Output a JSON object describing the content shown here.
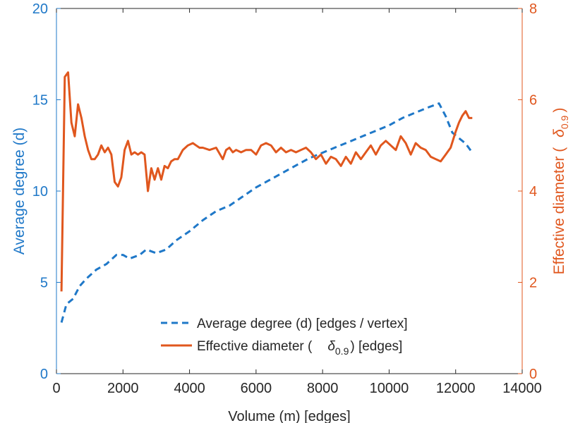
{
  "chart_data": {
    "type": "line",
    "title": "",
    "xlabel": "Volume (m) [edges]",
    "ylabel_left": "Average degree (d)",
    "ylabel_right_prefix": "Effective diameter (",
    "ylabel_right_symbol": "δ",
    "ylabel_right_subscript": "0.9",
    "ylabel_right_suffix": ")",
    "xlim": [
      0,
      14000
    ],
    "ylim_left": [
      0,
      20
    ],
    "ylim_right": [
      0,
      8
    ],
    "x_ticks": [
      "0",
      "2000",
      "4000",
      "6000",
      "8000",
      "10000",
      "12000",
      "14000"
    ],
    "y_left_ticks": [
      "0",
      "5",
      "10",
      "15",
      "20"
    ],
    "y_right_ticks": [
      "0",
      "2",
      "4",
      "6",
      "8"
    ],
    "grid": false,
    "legend_position": "bottom-right",
    "colors": {
      "left_axis": "#1f78c8",
      "right_axis": "#e0571e",
      "frame": "#262626"
    },
    "legend": [
      {
        "prefix": "Average degree (d) [edges / vertex]",
        "symbol": "",
        "subscript": "",
        "suffix": ""
      },
      {
        "prefix": "Effective diameter (",
        "symbol": "δ",
        "subscript": "0.9",
        "suffix": ") [edges]"
      }
    ],
    "series": [
      {
        "name": "Average degree (d) [edges / vertex]",
        "axis": "left",
        "style": "dashed",
        "color": "#1f78c8",
        "x": [
          150,
          300,
          500,
          700,
          900,
          1200,
          1500,
          1800,
          2000,
          2200,
          2500,
          2700,
          3000,
          3300,
          3600,
          4000,
          4400,
          4800,
          5200,
          5600,
          6000,
          6400,
          6800,
          7200,
          7600,
          8000,
          8400,
          8800,
          9200,
          9600,
          10000,
          10400,
          10800,
          11200,
          11500,
          11700,
          11900,
          12100,
          12300,
          12500
        ],
        "values": [
          2.8,
          3.8,
          4.1,
          4.8,
          5.2,
          5.7,
          6.0,
          6.5,
          6.5,
          6.3,
          6.5,
          6.8,
          6.6,
          6.8,
          7.3,
          7.8,
          8.4,
          8.9,
          9.2,
          9.7,
          10.2,
          10.6,
          11.0,
          11.4,
          11.8,
          12.1,
          12.4,
          12.7,
          13.0,
          13.3,
          13.6,
          14.0,
          14.3,
          14.6,
          14.8,
          14.1,
          13.2,
          12.9,
          12.6,
          12.1
        ]
      },
      {
        "name": "Effective diameter (δ0.9) [edges]",
        "axis": "right",
        "style": "solid",
        "color": "#e0571e",
        "x": [
          150,
          250,
          350,
          450,
          550,
          650,
          750,
          850,
          950,
          1050,
          1150,
          1250,
          1350,
          1450,
          1550,
          1650,
          1750,
          1850,
          1950,
          2050,
          2150,
          2250,
          2350,
          2450,
          2550,
          2650,
          2750,
          2850,
          2950,
          3050,
          3150,
          3250,
          3350,
          3450,
          3550,
          3650,
          3800,
          3950,
          4100,
          4200,
          4300,
          4400,
          4600,
          4800,
          5000,
          5100,
          5200,
          5300,
          5400,
          5550,
          5700,
          5850,
          6000,
          6150,
          6300,
          6450,
          6600,
          6750,
          6900,
          7050,
          7200,
          7350,
          7500,
          7650,
          7800,
          7950,
          8100,
          8250,
          8400,
          8550,
          8700,
          8850,
          9000,
          9150,
          9300,
          9450,
          9600,
          9750,
          9900,
          10050,
          10200,
          10350,
          10500,
          10650,
          10800,
          10950,
          11100,
          11250,
          11400,
          11550,
          11700,
          11850,
          12000,
          12100,
          12200,
          12300,
          12400,
          12500
        ],
        "values": [
          1.8,
          6.5,
          6.6,
          5.5,
          5.2,
          5.9,
          5.6,
          5.2,
          4.9,
          4.7,
          4.7,
          4.8,
          5.0,
          4.85,
          4.95,
          4.8,
          4.2,
          4.1,
          4.3,
          4.9,
          5.1,
          4.8,
          4.85,
          4.8,
          4.85,
          4.8,
          4.0,
          4.5,
          4.25,
          4.5,
          4.25,
          4.55,
          4.5,
          4.65,
          4.7,
          4.7,
          4.9,
          5.0,
          5.05,
          5.0,
          4.95,
          4.95,
          4.9,
          4.95,
          4.7,
          4.9,
          4.95,
          4.85,
          4.9,
          4.85,
          4.9,
          4.9,
          4.8,
          5.0,
          5.05,
          5.0,
          4.85,
          4.95,
          4.85,
          4.9,
          4.85,
          4.9,
          4.95,
          4.85,
          4.7,
          4.8,
          4.6,
          4.75,
          4.7,
          4.55,
          4.75,
          4.6,
          4.85,
          4.7,
          4.85,
          5.0,
          4.8,
          5.0,
          5.1,
          5.0,
          4.9,
          5.2,
          5.05,
          4.8,
          5.05,
          4.95,
          4.9,
          4.75,
          4.7,
          4.65,
          4.8,
          4.95,
          5.3,
          5.5,
          5.65,
          5.75,
          5.6,
          5.6
        ]
      }
    ]
  }
}
